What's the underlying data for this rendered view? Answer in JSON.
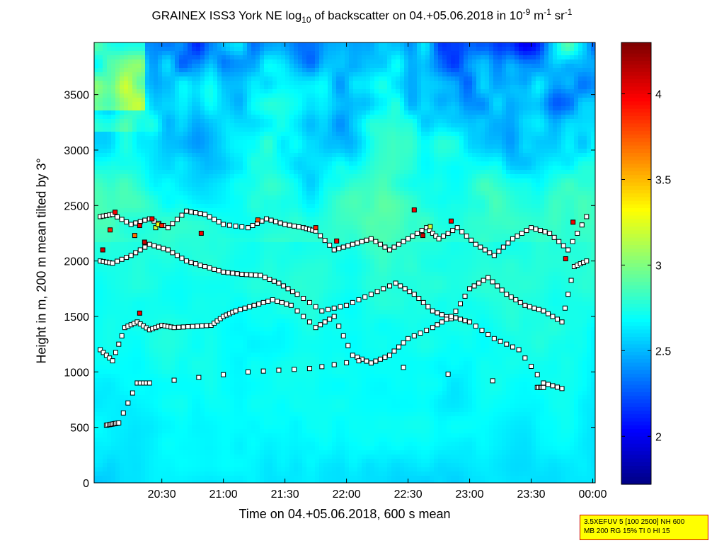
{
  "chart_data": {
    "type": "heatmap",
    "title_parts": {
      "pre": "GRAINEX ISS3 York NE log",
      "sub": "10",
      "mid": " of backscatter on 04.+05.06.2018 in 10",
      "sup1": "-9",
      "mid2": " m",
      "sup2": "-1",
      "end": " sr",
      "sup3": "-1"
    },
    "xlabel": "Time on 04.+05.06.2018, 600 s mean",
    "ylabel": "Height in m, 200 m mean tilted by 3°",
    "x_ticks": [
      "20:30",
      "21:00",
      "21:30",
      "22:00",
      "22:30",
      "23:00",
      "23:30",
      "00:00"
    ],
    "x_tick_hours": [
      20.5,
      21.0,
      21.5,
      22.0,
      22.5,
      23.0,
      23.5,
      24.0
    ],
    "xlim_hours": [
      19.95,
      24.02
    ],
    "y_ticks": [
      "0",
      "500",
      "1000",
      "1500",
      "2000",
      "2500",
      "3000",
      "3500"
    ],
    "y_tick_values": [
      0,
      500,
      1000,
      1500,
      2000,
      2500,
      3000,
      3500
    ],
    "ylim": [
      0,
      3970
    ],
    "colorbar": {
      "ticks": [
        "2",
        "2.5",
        "3",
        "3.5",
        "4"
      ],
      "tick_values": [
        2,
        2.5,
        3,
        3.5,
        4
      ],
      "range": [
        1.72,
        4.3
      ],
      "colormap": "jet"
    },
    "layer_markers": [
      {
        "name": "top",
        "points": [
          [
            20.0,
            2400
          ],
          [
            20.1,
            2420
          ],
          [
            20.25,
            2330
          ],
          [
            20.4,
            2380
          ],
          [
            20.55,
            2300
          ],
          [
            20.7,
            2450
          ],
          [
            20.85,
            2420
          ],
          [
            21.0,
            2330
          ],
          [
            21.2,
            2300
          ],
          [
            21.35,
            2380
          ],
          [
            21.5,
            2330
          ],
          [
            21.65,
            2300
          ],
          [
            21.75,
            2270
          ],
          [
            21.9,
            2100
          ],
          [
            22.05,
            2150
          ],
          [
            22.2,
            2200
          ],
          [
            22.35,
            2100
          ],
          [
            22.5,
            2200
          ],
          [
            22.65,
            2300
          ],
          [
            22.75,
            2200
          ],
          [
            22.9,
            2300
          ],
          [
            23.05,
            2150
          ],
          [
            23.2,
            2050
          ],
          [
            23.35,
            2200
          ],
          [
            23.5,
            2300
          ],
          [
            23.65,
            2250
          ],
          [
            23.8,
            2100
          ],
          [
            23.95,
            2400
          ]
        ]
      },
      {
        "name": "upper",
        "points": [
          [
            20.0,
            2000
          ],
          [
            20.1,
            1980
          ],
          [
            20.25,
            2050
          ],
          [
            20.4,
            2150
          ],
          [
            20.55,
            2100
          ],
          [
            20.7,
            2000
          ],
          [
            20.85,
            1950
          ],
          [
            21.0,
            1900
          ],
          [
            21.15,
            1880
          ],
          [
            21.3,
            1870
          ],
          [
            21.45,
            1800
          ],
          [
            21.6,
            1700
          ],
          [
            21.8,
            1550
          ],
          [
            22.0,
            1600
          ],
          [
            22.2,
            1700
          ],
          [
            22.4,
            1800
          ],
          [
            22.55,
            1700
          ],
          [
            22.7,
            1550
          ],
          [
            22.85,
            1480
          ],
          [
            23.0,
            1750
          ],
          [
            23.15,
            1850
          ],
          [
            23.3,
            1700
          ],
          [
            23.45,
            1600
          ],
          [
            23.6,
            1550
          ],
          [
            23.75,
            1450
          ],
          [
            23.85,
            1950
          ],
          [
            23.95,
            2000
          ]
        ]
      },
      {
        "name": "lower",
        "points": [
          [
            20.0,
            1200
          ],
          [
            20.1,
            1100
          ],
          [
            20.2,
            1400
          ],
          [
            20.3,
            1450
          ],
          [
            20.4,
            1380
          ],
          [
            20.5,
            1420
          ],
          [
            20.6,
            1400
          ],
          [
            20.75,
            1410
          ],
          [
            20.9,
            1420
          ],
          [
            21.0,
            1500
          ],
          [
            21.1,
            1550
          ],
          [
            21.25,
            1600
          ],
          [
            21.4,
            1650
          ],
          [
            21.55,
            1600
          ],
          [
            21.75,
            1400
          ],
          [
            21.9,
            1500
          ],
          [
            22.05,
            1150
          ],
          [
            22.2,
            1080
          ],
          [
            22.35,
            1150
          ],
          [
            22.5,
            1300
          ],
          [
            22.7,
            1400
          ],
          [
            22.85,
            1500
          ],
          [
            23.0,
            1450
          ],
          [
            23.2,
            1300
          ],
          [
            23.4,
            1200
          ],
          [
            23.6,
            900
          ],
          [
            23.75,
            850
          ]
        ]
      },
      {
        "name": "bottom",
        "points": [
          [
            20.05,
            520
          ],
          [
            20.1,
            530
          ],
          [
            20.15,
            540
          ],
          [
            20.3,
            900
          ],
          [
            20.4,
            900
          ],
          [
            21.2,
            1000
          ],
          [
            21.7,
            1030
          ],
          [
            22.1,
            1100
          ],
          [
            23.55,
            860
          ],
          [
            23.6,
            860
          ]
        ]
      }
    ],
    "colored_markers": [
      {
        "x": 20.02,
        "y": 2100,
        "value": 4.1
      },
      {
        "x": 20.08,
        "y": 2280,
        "value": 3.9
      },
      {
        "x": 20.12,
        "y": 2440,
        "value": 4.0
      },
      {
        "x": 20.28,
        "y": 2230,
        "value": 3.7
      },
      {
        "x": 20.32,
        "y": 2320,
        "value": 4.0
      },
      {
        "x": 20.36,
        "y": 2170,
        "value": 4.1
      },
      {
        "x": 20.45,
        "y": 2300,
        "value": 3.2
      },
      {
        "x": 20.47,
        "y": 2330,
        "value": 3.3
      },
      {
        "x": 20.42,
        "y": 2380,
        "value": 4.0
      },
      {
        "x": 20.5,
        "y": 2320,
        "value": 3.9
      },
      {
        "x": 20.32,
        "y": 1530,
        "value": 4.0
      },
      {
        "x": 20.82,
        "y": 2250,
        "value": 4.0
      },
      {
        "x": 21.28,
        "y": 2370,
        "value": 3.8
      },
      {
        "x": 21.75,
        "y": 2300,
        "value": 3.9
      },
      {
        "x": 21.92,
        "y": 2180,
        "value": 4.0
      },
      {
        "x": 22.55,
        "y": 2460,
        "value": 4.0
      },
      {
        "x": 22.68,
        "y": 2310,
        "value": 3.2
      },
      {
        "x": 22.62,
        "y": 2230,
        "value": 4.1
      },
      {
        "x": 22.85,
        "y": 2360,
        "value": 4.0
      },
      {
        "x": 23.78,
        "y": 2020,
        "value": 4.0
      },
      {
        "x": 23.84,
        "y": 2350,
        "value": 4.0
      }
    ]
  },
  "info_box": {
    "line1": "3.5XEFUV 5 [100 2500] NH 600",
    "line2": "MB 200 RG 15% TI 0 HI 15"
  }
}
